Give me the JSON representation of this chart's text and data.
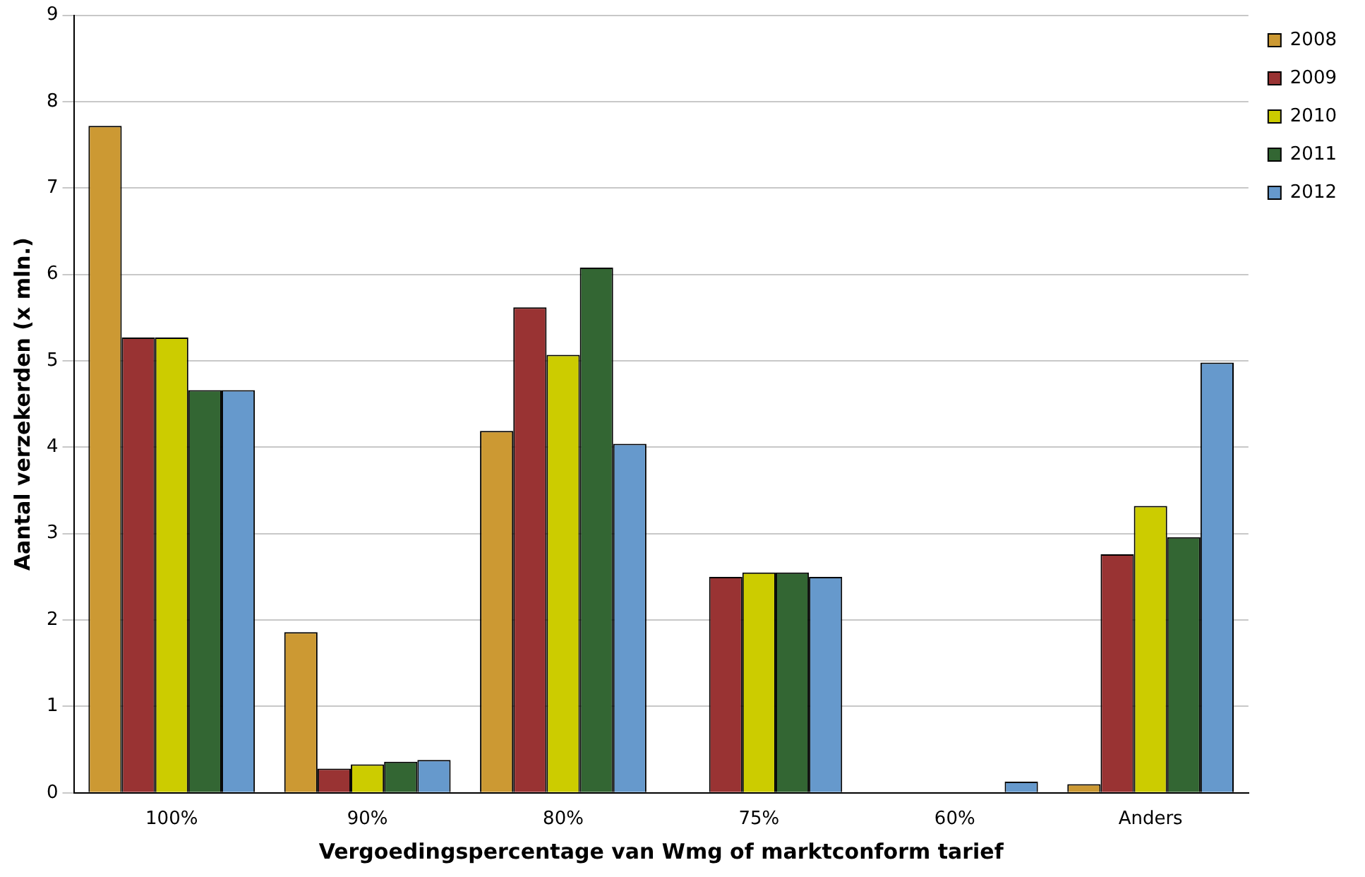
{
  "chart_data": {
    "type": "bar",
    "xlabel": "Vergoedingspercentage van Wmg of marktconform tarief",
    "ylabel": "Aantal verzekerden (x mln.)",
    "categories": [
      "100%",
      "90%",
      "80%",
      "75%",
      "60%",
      "Anders"
    ],
    "series": [
      {
        "name": "2008",
        "color": "#cc9933",
        "values": [
          7.72,
          1.86,
          4.19,
          null,
          null,
          0.1
        ]
      },
      {
        "name": "2009",
        "color": "#993333",
        "values": [
          5.27,
          0.28,
          5.62,
          2.5,
          null,
          2.76
        ]
      },
      {
        "name": "2010",
        "color": "#cccc00",
        "values": [
          5.27,
          0.33,
          5.07,
          2.55,
          null,
          3.32
        ]
      },
      {
        "name": "2011",
        "color": "#336633",
        "values": [
          4.66,
          0.36,
          6.08,
          2.55,
          null,
          2.96
        ]
      },
      {
        "name": "2012",
        "color": "#6699cc",
        "values": [
          4.66,
          0.38,
          4.04,
          2.5,
          0.13,
          4.98
        ]
      }
    ],
    "ylim": [
      0,
      9
    ],
    "yticks": [
      0,
      1,
      2,
      3,
      4,
      5,
      6,
      7,
      8,
      9
    ],
    "grid": "y",
    "legend": "top right"
  }
}
